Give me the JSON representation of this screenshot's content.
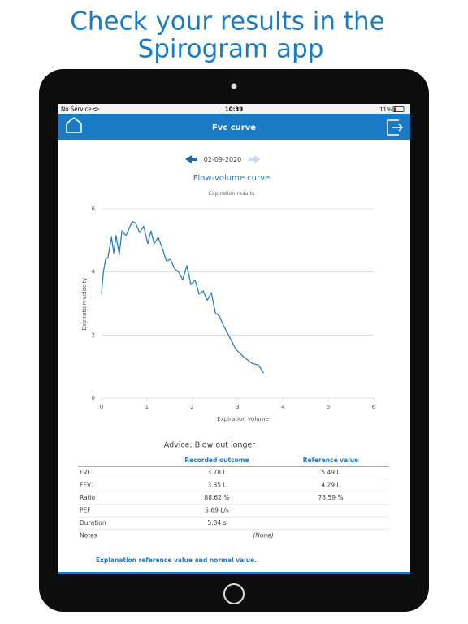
{
  "headline": [
    "Check your results in the",
    "Spirogram app"
  ],
  "status_bar": {
    "carrier": "No Service",
    "time": "10:39",
    "battery": "11%"
  },
  "nav": {
    "title": "Fvc curve"
  },
  "date": "02-09-2020",
  "chart_data": {
    "type": "line",
    "title": "Flow-volume curve",
    "subtitle": "Expiration results",
    "x_label": "Expiration volume",
    "y_label": "Expiration velocity",
    "x": [
      0,
      0.04,
      0.09,
      0.14,
      0.22,
      0.27,
      0.32,
      0.39,
      0.45,
      0.54,
      0.63,
      0.68,
      0.75,
      0.84,
      0.93,
      1.02,
      1.09,
      1.16,
      1.25,
      1.34,
      1.43,
      1.52,
      1.61,
      1.7,
      1.79,
      1.88,
      1.97,
      2.06,
      2.15,
      2.24,
      2.33,
      2.42,
      2.51,
      2.6,
      2.69,
      2.78,
      2.87,
      2.96,
      3.14,
      3.32,
      3.46,
      3.57
    ],
    "values": [
      3.3,
      4.0,
      4.4,
      4.45,
      5.1,
      4.6,
      5.15,
      4.55,
      5.3,
      5.15,
      5.45,
      5.6,
      5.55,
      5.25,
      5.45,
      4.9,
      5.3,
      4.9,
      5.1,
      4.75,
      4.35,
      4.4,
      4.1,
      4.0,
      3.75,
      4.2,
      3.6,
      3.75,
      3.3,
      3.4,
      3.1,
      3.35,
      2.7,
      2.6,
      2.3,
      2.05,
      1.8,
      1.55,
      1.3,
      1.1,
      1.05,
      0.8
    ],
    "color": "#2a7fc4",
    "xlim": [
      0,
      6
    ],
    "xticks": [
      0,
      1,
      2,
      3,
      4,
      5,
      6
    ],
    "ylim": [
      0,
      6
    ],
    "yticks": [
      0,
      2,
      4,
      6
    ],
    "grid": true
  },
  "advice": "Advice: Blow out longer",
  "table": {
    "columns": [
      "Recorded outcome",
      "Reference value"
    ],
    "rows": [
      [
        "FVC",
        "3.78 L",
        "5.49 L"
      ],
      [
        "FEV1",
        "3.35 L",
        "4.29 L"
      ],
      [
        "Ratio",
        "88.62 %",
        "78.59 %"
      ],
      [
        "PEF",
        "5.69 L/s"
      ],
      [
        "Duration",
        "5.34 s"
      ],
      [
        "Notes",
        "(None)"
      ]
    ]
  },
  "footer_link": "Explanation reference value and normal value."
}
